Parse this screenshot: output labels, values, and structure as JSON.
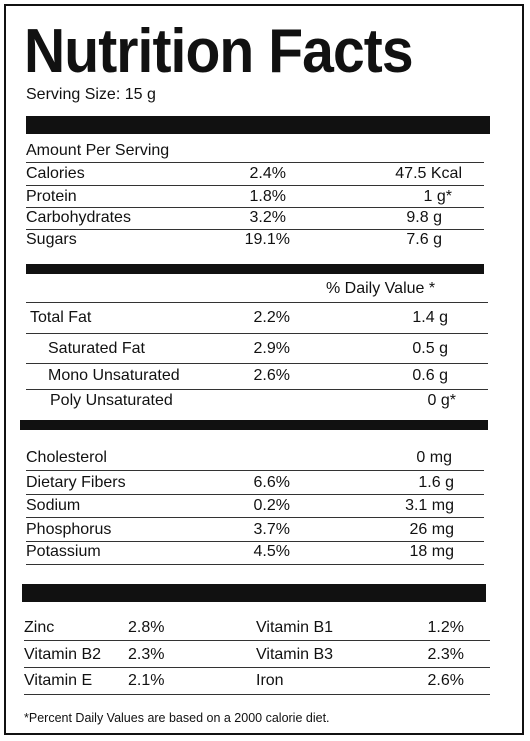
{
  "title": "Nutrition Facts",
  "serving": "Serving Size: 15 g",
  "amount_header": "Amount Per Serving",
  "section1": [
    {
      "name": "Calories",
      "pct": "2.4%",
      "amount": "47.5 Kcal"
    },
    {
      "name": "Protein",
      "pct": "1.8%",
      "amount": "1 g*"
    },
    {
      "name": "Carbohydrates",
      "pct": "3.2%",
      "amount": "9.8 g"
    },
    {
      "name": "Sugars",
      "pct": "19.1%",
      "amount": "7.6 g"
    }
  ],
  "dv_header": "% Daily Value *",
  "fats": [
    {
      "name": "Total Fat",
      "pct": "2.2%",
      "amount": "1.4 g"
    },
    {
      "name": "Saturated Fat",
      "pct": "2.9%",
      "amount": "0.5 g"
    },
    {
      "name": "Mono Unsaturated",
      "pct": "2.6%",
      "amount": "0.6 g"
    },
    {
      "name": "Poly Unsaturated",
      "pct": "",
      "amount": "0 g*"
    }
  ],
  "minerals": [
    {
      "name": "Cholesterol",
      "pct": "",
      "amount": "0 mg"
    },
    {
      "name": "Dietary Fibers",
      "pct": "6.6%",
      "amount": "1.6 g"
    },
    {
      "name": "Sodium",
      "pct": "0.2%",
      "amount": "3.1 mg"
    },
    {
      "name": "Phosphorus",
      "pct": "3.7%",
      "amount": "26 mg"
    },
    {
      "name": "Potassium",
      "pct": "4.5%",
      "amount": "18 mg"
    }
  ],
  "vitamins": [
    {
      "left_name": "Zinc",
      "left_pct": "2.8%",
      "right_name": "Vitamin B1",
      "right_pct": "1.2%"
    },
    {
      "left_name": "Vitamin B2",
      "left_pct": "2.3%",
      "right_name": "Vitamin B3",
      "right_pct": "2.3%"
    },
    {
      "left_name": "Vitamin E",
      "left_pct": "2.1%",
      "right_name": "Iron",
      "right_pct": "2.6%"
    }
  ],
  "footnote": "*Percent Daily Values are based on a 2000 calorie diet."
}
